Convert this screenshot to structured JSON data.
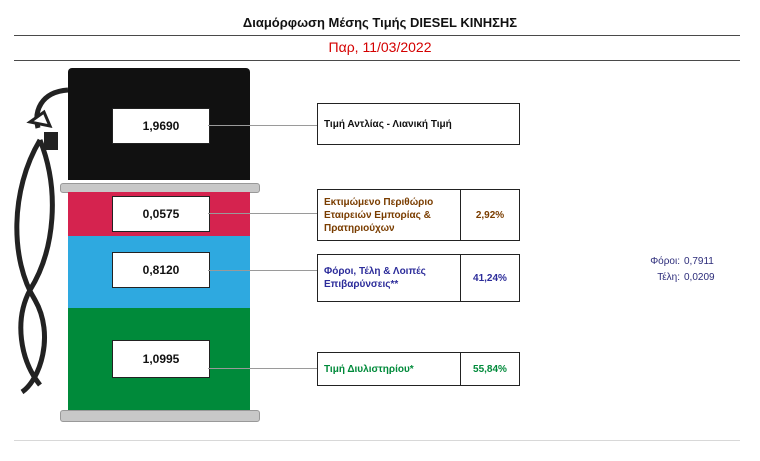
{
  "header": {
    "title": "Διαμόρφωση Μέσης Τιμής  DIESEL ΚΙΝΗΣΗΣ",
    "date": "Παρ, 11/03/2022"
  },
  "chart_data": {
    "type": "bar",
    "categories": [
      "Τιμή Αντλίας - Λιανική Τιμή",
      "Εκτιμώμενο Περιθώριο Εταιρειών Εμπορίας & Πρατηριούχων",
      "Φόροι, Τέλη & Λοιπές Επιβαρύνσεις**",
      "Τιμή Διυλιστηρίου*"
    ],
    "values": [
      "1,9690",
      "0,0575",
      "0,8120",
      "1,0995"
    ],
    "percentages": [
      "",
      "2,92%",
      "41,24%",
      "55,84%"
    ],
    "colors": [
      "#111111",
      "#d5234f",
      "#2ea9e0",
      "#008a3a"
    ]
  },
  "breakdown": {
    "taxes_label": "Φόροι:",
    "taxes_value": "0,7911",
    "fees_label": "Τέλη:",
    "fees_value": "0,0209"
  },
  "colors": {
    "label_margin": "#7a3d00",
    "label_taxes": "#2c2c9a",
    "label_refinery": "#008a3a",
    "date": "#d40000"
  }
}
